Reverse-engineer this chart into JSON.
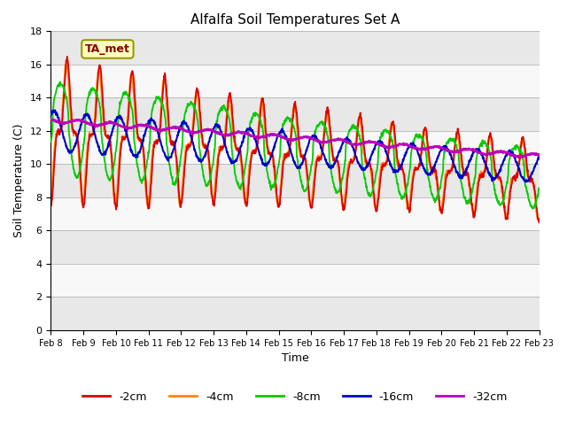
{
  "title": "Alfalfa Soil Temperatures Set A",
  "xlabel": "Time",
  "ylabel": "Soil Temperature (C)",
  "ylim": [
    0,
    18
  ],
  "yticks": [
    0,
    2,
    4,
    6,
    8,
    10,
    12,
    14,
    16,
    18
  ],
  "annotation": "TA_met",
  "legend_labels": [
    "-2cm",
    "-4cm",
    "-8cm",
    "-16cm",
    "-32cm"
  ],
  "line_colors": [
    "#dd0000",
    "#ff8800",
    "#00cc00",
    "#0000cc",
    "#bb00bb"
  ],
  "line_widths": [
    1.3,
    1.3,
    1.3,
    1.5,
    1.8
  ],
  "background_alternating": [
    "#e8e8e8",
    "#f8f8f8"
  ],
  "figsize": [
    6.4,
    4.8
  ],
  "dpi": 100
}
